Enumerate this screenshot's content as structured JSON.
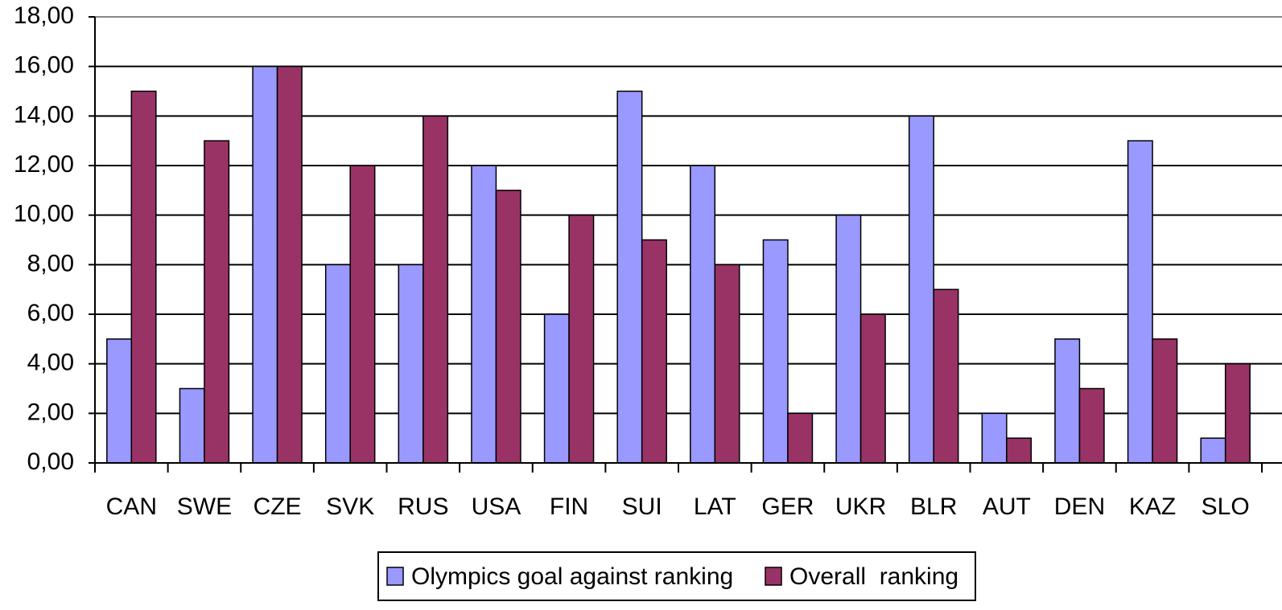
{
  "chart_data": {
    "type": "bar",
    "categories": [
      "CAN",
      "SWE",
      "CZE",
      "SVK",
      "RUS",
      "USA",
      "FIN",
      "SUI",
      "LAT",
      "GER",
      "UKR",
      "BLR",
      "AUT",
      "DEN",
      "KAZ",
      "SLO"
    ],
    "series": [
      {
        "name": "Olympics goal against ranking",
        "color": "#9999ff",
        "values": [
          5,
          3,
          16,
          8,
          8,
          12,
          6,
          15,
          12,
          9,
          10,
          14,
          2,
          5,
          13,
          1
        ]
      },
      {
        "name": "Overall  ranking",
        "color": "#993366",
        "values": [
          15,
          13,
          16,
          12,
          14,
          11,
          10,
          9,
          8,
          2,
          6,
          7,
          1,
          3,
          5,
          4
        ]
      }
    ],
    "ylim": [
      0,
      18
    ],
    "yticks": [
      {
        "value": 0,
        "label": "0,00"
      },
      {
        "value": 2,
        "label": "2,00"
      },
      {
        "value": 4,
        "label": "4,00"
      },
      {
        "value": 6,
        "label": "6,00"
      },
      {
        "value": 8,
        "label": "8,00"
      },
      {
        "value": 10,
        "label": "10,00"
      },
      {
        "value": 12,
        "label": "12,00"
      },
      {
        "value": 14,
        "label": "14,00"
      },
      {
        "value": 16,
        "label": "16,00"
      },
      {
        "value": 18,
        "label": "18,00"
      }
    ],
    "grid": true,
    "legend": "bottom"
  }
}
